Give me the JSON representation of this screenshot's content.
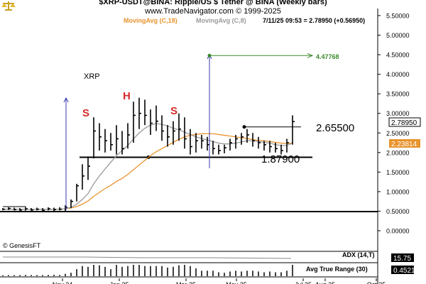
{
  "header": {
    "title": "$XRP-USDT@BINA:  Ripple/US $ Tether @ BINA  (Weekly bars)",
    "copyright": "www.TradeNavigator.com © 1999-2025",
    "ma18_label": "MovingAvg (C,18)",
    "ma8_label": "MovingAvg (C,8)",
    "quote_line": "7/11/25 09:53 = 2.78950 (+0.56950)"
  },
  "colors": {
    "up": "#000000",
    "ma18": "#e8942e",
    "ma8": "#9a9a9a",
    "target": "#3a8a2a",
    "arrow": "#3a3ab0",
    "pattern": "#d42a2a"
  },
  "icons": {
    "logo": "scales-logo-icon"
  },
  "chart_data": {
    "type": "ohlc",
    "symbol_label": "XRP",
    "y_ticks": [
      "5.50000",
      "5.00000",
      "4.50000",
      "4.00000",
      "3.50000",
      "3.00000",
      "2.50000",
      "2.00000",
      "1.50000",
      "1.00000",
      "0.50000",
      "0.00000"
    ],
    "ylim": [
      -0.3,
      5.6
    ],
    "x_ticks": [
      "Nov 24",
      "Jan 25",
      "Mar 25",
      "May 25",
      "Jul 25",
      "Aug 25",
      "Oct 25"
    ],
    "last_price_tag": "2.78950",
    "ma_value_tag": "2.23814",
    "annotations": {
      "target": "4.47768",
      "resistance": "2.65500",
      "neckline": "1.87900",
      "left_shoulder": "S",
      "head": "H",
      "right_shoulder": "S"
    },
    "bars": [
      {
        "h": 0.58,
        "l": 0.52,
        "c": 0.55
      },
      {
        "h": 0.6,
        "l": 0.53,
        "c": 0.57
      },
      {
        "h": 0.59,
        "l": 0.52,
        "c": 0.54
      },
      {
        "h": 0.58,
        "l": 0.51,
        "c": 0.53
      },
      {
        "h": 0.6,
        "l": 0.52,
        "c": 0.56
      },
      {
        "h": 0.58,
        "l": 0.51,
        "c": 0.53
      },
      {
        "h": 0.59,
        "l": 0.52,
        "c": 0.55
      },
      {
        "h": 0.58,
        "l": 0.51,
        "c": 0.52
      },
      {
        "h": 0.6,
        "l": 0.52,
        "c": 0.56
      },
      {
        "h": 0.59,
        "l": 0.5,
        "c": 0.54
      },
      {
        "h": 0.6,
        "l": 0.52,
        "c": 0.55
      },
      {
        "h": 0.65,
        "l": 0.5,
        "c": 0.6
      },
      {
        "h": 0.8,
        "l": 0.58,
        "c": 0.75
      },
      {
        "h": 1.2,
        "l": 0.75,
        "c": 1.15
      },
      {
        "h": 1.7,
        "l": 1.05,
        "c": 1.4
      },
      {
        "h": 1.9,
        "l": 1.3,
        "c": 1.65
      },
      {
        "h": 2.9,
        "l": 1.85,
        "c": 2.55
      },
      {
        "h": 2.75,
        "l": 2.05,
        "c": 2.4
      },
      {
        "h": 2.6,
        "l": 2.0,
        "c": 2.3
      },
      {
        "h": 2.5,
        "l": 2.05,
        "c": 2.2
      },
      {
        "h": 2.7,
        "l": 1.95,
        "c": 2.35
      },
      {
        "h": 2.55,
        "l": 1.95,
        "c": 2.1
      },
      {
        "h": 2.75,
        "l": 2.1,
        "c": 2.45
      },
      {
        "h": 3.3,
        "l": 2.25,
        "c": 2.95
      },
      {
        "h": 3.4,
        "l": 2.6,
        "c": 3.0
      },
      {
        "h": 3.35,
        "l": 2.7,
        "c": 2.95
      },
      {
        "h": 3.1,
        "l": 2.45,
        "c": 2.75
      },
      {
        "h": 3.2,
        "l": 2.55,
        "c": 2.8
      },
      {
        "h": 2.95,
        "l": 2.3,
        "c": 2.55
      },
      {
        "h": 2.7,
        "l": 2.15,
        "c": 2.4
      },
      {
        "h": 2.8,
        "l": 2.2,
        "c": 2.55
      },
      {
        "h": 3.0,
        "l": 2.3,
        "c": 2.6
      },
      {
        "h": 2.9,
        "l": 2.1,
        "c": 2.35
      },
      {
        "h": 2.6,
        "l": 1.95,
        "c": 2.15
      },
      {
        "h": 2.5,
        "l": 2.0,
        "c": 2.3
      },
      {
        "h": 2.45,
        "l": 2.1,
        "c": 2.3
      },
      {
        "h": 2.4,
        "l": 2.05,
        "c": 2.2
      },
      {
        "h": 2.3,
        "l": 1.95,
        "c": 2.1
      },
      {
        "h": 2.2,
        "l": 1.95,
        "c": 2.05
      },
      {
        "h": 2.2,
        "l": 1.98,
        "c": 2.12
      },
      {
        "h": 2.35,
        "l": 2.05,
        "c": 2.25
      },
      {
        "h": 2.45,
        "l": 2.1,
        "c": 2.35
      },
      {
        "h": 2.5,
        "l": 2.2,
        "c": 2.4
      },
      {
        "h": 2.6,
        "l": 2.25,
        "c": 2.45
      },
      {
        "h": 2.5,
        "l": 2.15,
        "c": 2.3
      },
      {
        "h": 2.4,
        "l": 2.1,
        "c": 2.25
      },
      {
        "h": 2.3,
        "l": 2.05,
        "c": 2.2
      },
      {
        "h": 2.3,
        "l": 2.0,
        "c": 2.15
      },
      {
        "h": 2.25,
        "l": 2.0,
        "c": 2.1
      },
      {
        "h": 2.2,
        "l": 1.95,
        "c": 2.05
      },
      {
        "h": 2.35,
        "l": 2.0,
        "c": 2.25
      },
      {
        "h": 2.95,
        "l": 2.2,
        "c": 2.79
      }
    ],
    "ma18": [
      0.55,
      0.55,
      0.55,
      0.55,
      0.55,
      0.55,
      0.55,
      0.55,
      0.55,
      0.55,
      0.55,
      0.56,
      0.58,
      0.62,
      0.68,
      0.76,
      0.88,
      0.98,
      1.08,
      1.16,
      1.26,
      1.34,
      1.44,
      1.56,
      1.68,
      1.8,
      1.92,
      2.02,
      2.1,
      2.18,
      2.26,
      2.34,
      2.4,
      2.44,
      2.46,
      2.48,
      2.48,
      2.48,
      2.46,
      2.44,
      2.42,
      2.4,
      2.38,
      2.36,
      2.33,
      2.31,
      2.3,
      2.28,
      2.26,
      2.24,
      2.23,
      2.24
    ],
    "ma8": [
      0.55,
      0.55,
      0.55,
      0.55,
      0.55,
      0.55,
      0.55,
      0.55,
      0.55,
      0.55,
      0.55,
      0.56,
      0.6,
      0.68,
      0.8,
      0.95,
      1.2,
      1.4,
      1.58,
      1.75,
      1.92,
      2.05,
      2.18,
      2.35,
      2.5,
      2.62,
      2.7,
      2.74,
      2.72,
      2.68,
      2.62,
      2.58,
      2.52,
      2.46,
      2.4,
      2.36,
      2.32,
      2.28,
      2.24,
      2.22,
      2.22,
      2.24,
      2.27,
      2.3,
      2.3,
      2.28,
      2.26,
      2.24,
      2.2,
      2.18,
      2.18,
      2.24
    ]
  },
  "legend": {
    "source": "© GenesisFT"
  },
  "indicators": [
    {
      "name": "ADX (14,T)",
      "value": "15.75"
    },
    {
      "name": "Avg True Range (30)",
      "value": "0.4521"
    }
  ]
}
